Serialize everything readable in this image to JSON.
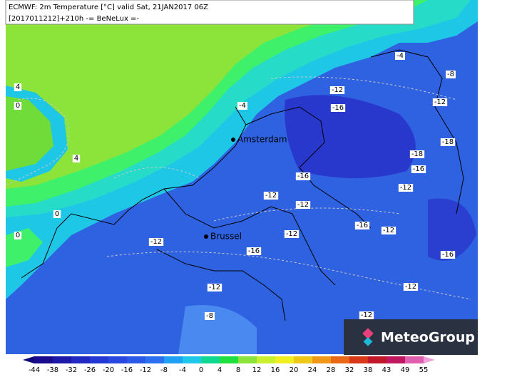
{
  "header": {
    "line1": "ECMWF: 2m Temperature [°C] valid Sat, 21JAN2017 06Z",
    "line2": "[2017011212]+210h -= BeNeLux =-"
  },
  "cities": [
    "Amsterdam",
    "Brussel"
  ],
  "contour_labels": [
    "-4",
    "-8",
    "-12",
    "-12",
    "-4",
    "-16",
    "-18",
    "-18",
    "-16",
    "-16",
    "-12",
    "-12",
    "-12",
    "-16",
    "-12",
    "-12",
    "-12",
    "-16",
    "-16",
    "-12",
    "-12",
    "-8",
    "-12",
    "4",
    "0",
    "4",
    "0",
    "0"
  ],
  "colorbar": [
    -44,
    -38,
    -32,
    -26,
    -20,
    -16,
    -12,
    -8,
    -4,
    0,
    4,
    8,
    12,
    16,
    20,
    24,
    28,
    32,
    38,
    43,
    49,
    55
  ],
  "logo": "MeteoGroup"
}
